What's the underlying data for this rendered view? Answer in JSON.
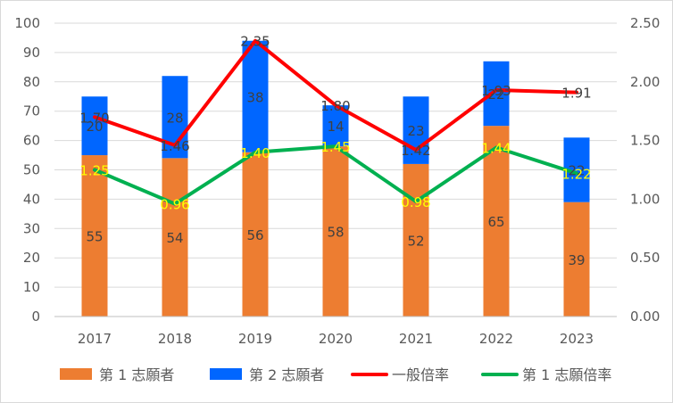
{
  "chart_data": {
    "type": "bar",
    "stacked": true,
    "categories": [
      "2017",
      "2018",
      "2019",
      "2020",
      "2021",
      "2022",
      "2023"
    ],
    "series": [
      {
        "name": "第 1 志願者",
        "type": "bar",
        "axis": "left",
        "color": "#ED7D31",
        "values": [
          55,
          54,
          56,
          58,
          52,
          65,
          39
        ],
        "label_color": "#404040"
      },
      {
        "name": "第 2 志願者",
        "type": "bar",
        "axis": "left",
        "color": "#0066FF",
        "values": [
          20,
          28,
          38,
          14,
          23,
          22,
          22
        ],
        "label_color": "#404040"
      },
      {
        "name": "一般倍率",
        "type": "line",
        "axis": "right",
        "color": "#FF0000",
        "values": [
          1.7,
          1.46,
          2.35,
          1.8,
          1.42,
          1.93,
          1.91
        ],
        "labels": [
          "1.70",
          "1.46",
          "2.35",
          "1.80",
          "1.42",
          "1.93",
          "1.91"
        ],
        "label_color": "#404040"
      },
      {
        "name": "第 1 志願倍率",
        "type": "line",
        "axis": "right",
        "color": "#00B050",
        "values": [
          1.25,
          0.96,
          1.4,
          1.45,
          0.98,
          1.44,
          1.22
        ],
        "labels": [
          "1.25",
          "0.96",
          "1.40",
          "1.45",
          "0.98",
          "1.44",
          "1.22"
        ],
        "label_color": "#FFFF00"
      }
    ],
    "y_left": {
      "min": 0,
      "max": 100,
      "step": 10,
      "ticks": [
        "0",
        "10",
        "20",
        "30",
        "40",
        "50",
        "60",
        "70",
        "80",
        "90",
        "100"
      ]
    },
    "y_right": {
      "min": 0,
      "max": 2.5,
      "step": 0.5,
      "ticks": [
        "0.00",
        "0.50",
        "1.00",
        "1.50",
        "2.00",
        "2.50"
      ]
    },
    "grid": true,
    "legend_position": "bottom"
  }
}
